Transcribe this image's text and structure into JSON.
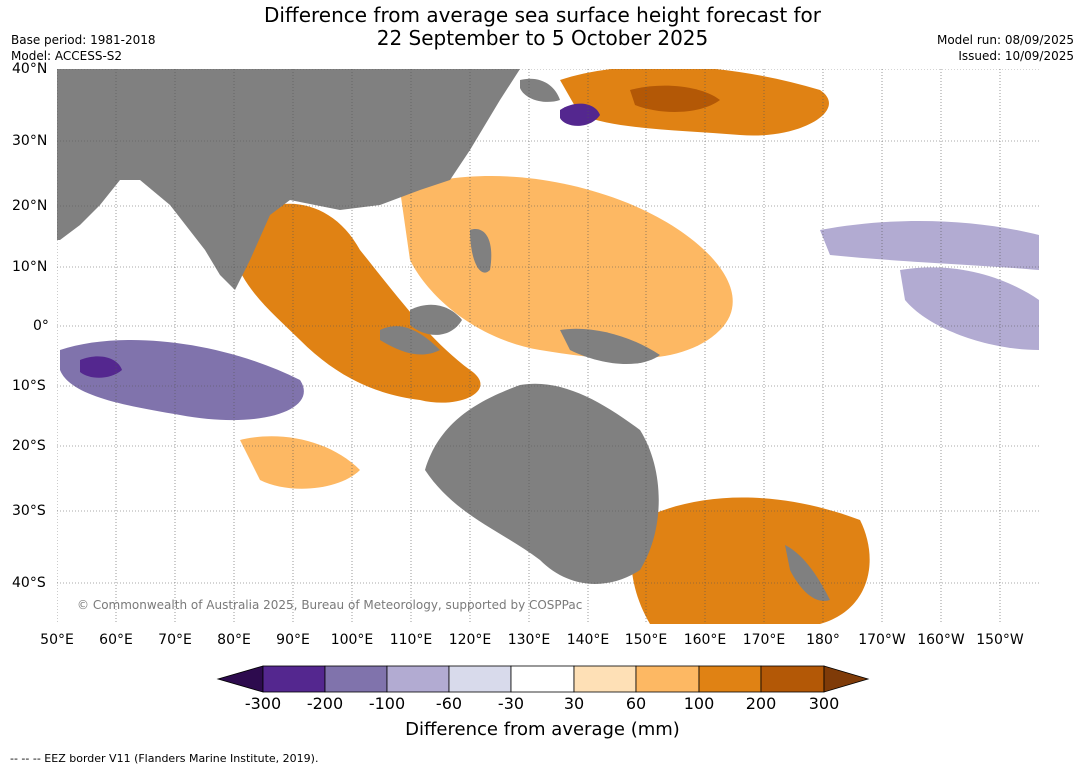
{
  "title_line1": "Difference from average sea surface height forecast for",
  "title_line2": "22 September to 5 October 2025",
  "base_period": "Base period: 1981-2018",
  "model": "Model: ACCESS-S2",
  "model_run": "Model run: 08/09/2025",
  "issued": "Issued: 10/09/2025",
  "copyright": "© Commonwealth of Australia 2025, Bureau of Meteorology, supported by COSPPac",
  "latitudes": [
    "40°N",
    "30°N",
    "20°N",
    "10°N",
    "0°",
    "10°S",
    "20°S",
    "30°S",
    "40°S"
  ],
  "longitudes": [
    "50°E",
    "60°E",
    "70°E",
    "80°E",
    "90°E",
    "100°E",
    "110°E",
    "120°E",
    "130°E",
    "140°E",
    "150°E",
    "160°E",
    "170°E",
    "180°",
    "170°W",
    "160°W",
    "150°W"
  ],
  "colorbar": {
    "ticks": [
      "-300",
      "-200",
      "-100",
      "-60",
      "-30",
      "30",
      "60",
      "100",
      "200",
      "300"
    ],
    "colors": [
      "#2d0b4e",
      "#54278f",
      "#8073ac",
      "#b2abd2",
      "#d8daeb",
      "#ffffff",
      "#fee0b6",
      "#fdb863",
      "#e08214",
      "#b35806",
      "#7f3b08"
    ],
    "label": "Difference from average (mm)"
  },
  "footer": "--  --  -- EEZ border V11 (Flanders Marine Institute, 2019).",
  "colors": {
    "land": "#808080",
    "grid": "#555555"
  }
}
